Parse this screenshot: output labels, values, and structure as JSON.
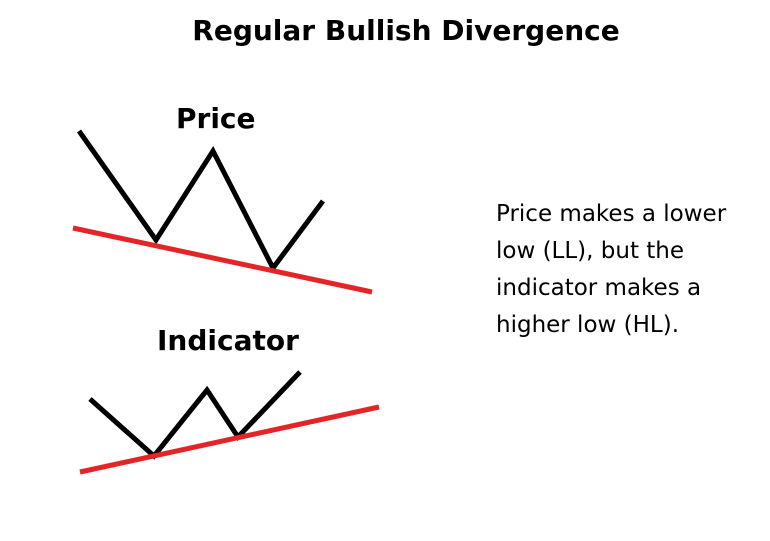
{
  "title": "Regular Bullish Divergence",
  "panels": {
    "price": {
      "label": "Price"
    },
    "indicator": {
      "label": "Indicator"
    }
  },
  "description": {
    "lines": [
      "Price makes a lower",
      "low (LL), but the",
      "indicator makes a",
      "higher low (HL)."
    ]
  },
  "colors": {
    "price_line": "#000000",
    "trend_line": "#e32528",
    "text": "#000000",
    "background": "#ffffff"
  }
}
